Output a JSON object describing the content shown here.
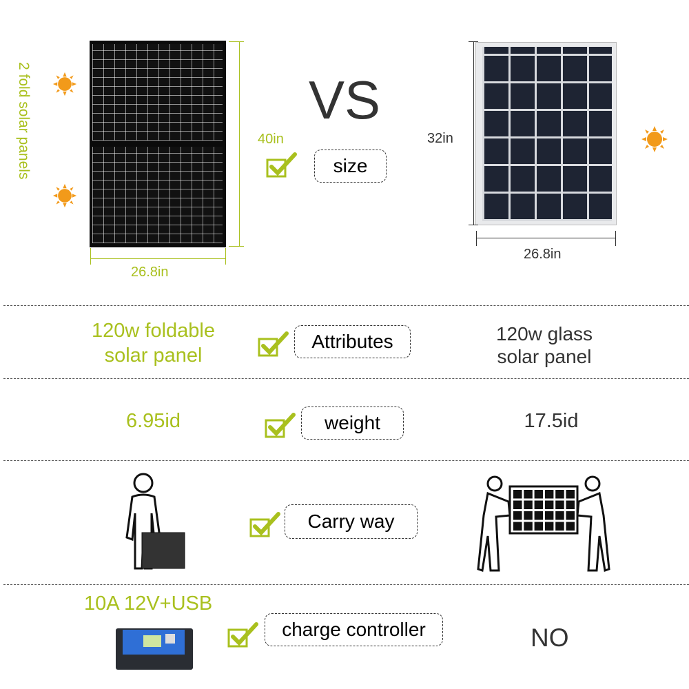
{
  "header": {
    "vs_label": "VS",
    "size_label": "size"
  },
  "left_panel": {
    "side_label": "2 fold solar panels",
    "height": "40in",
    "width": "26.8in"
  },
  "right_panel": {
    "height": "32in",
    "width": "26.8in"
  },
  "rows": [
    {
      "label": "Attributes",
      "left": "120w foldable solar panel",
      "right": "120w glass solar panel"
    },
    {
      "label": "weight",
      "left": "6.95id",
      "right": "17.5id"
    },
    {
      "label": "Carry way"
    },
    {
      "label": "charge controller",
      "left": "10A 12V+USB",
      "right": "NO"
    }
  ],
  "colors": {
    "accent": "#a9c01e",
    "text": "#333333",
    "sun": "#f29a1a"
  },
  "icons": [
    "sun-icon",
    "check-icon",
    "person-carrying-case-icon",
    "two-people-carrying-panel-icon",
    "charge-controller-image"
  ]
}
